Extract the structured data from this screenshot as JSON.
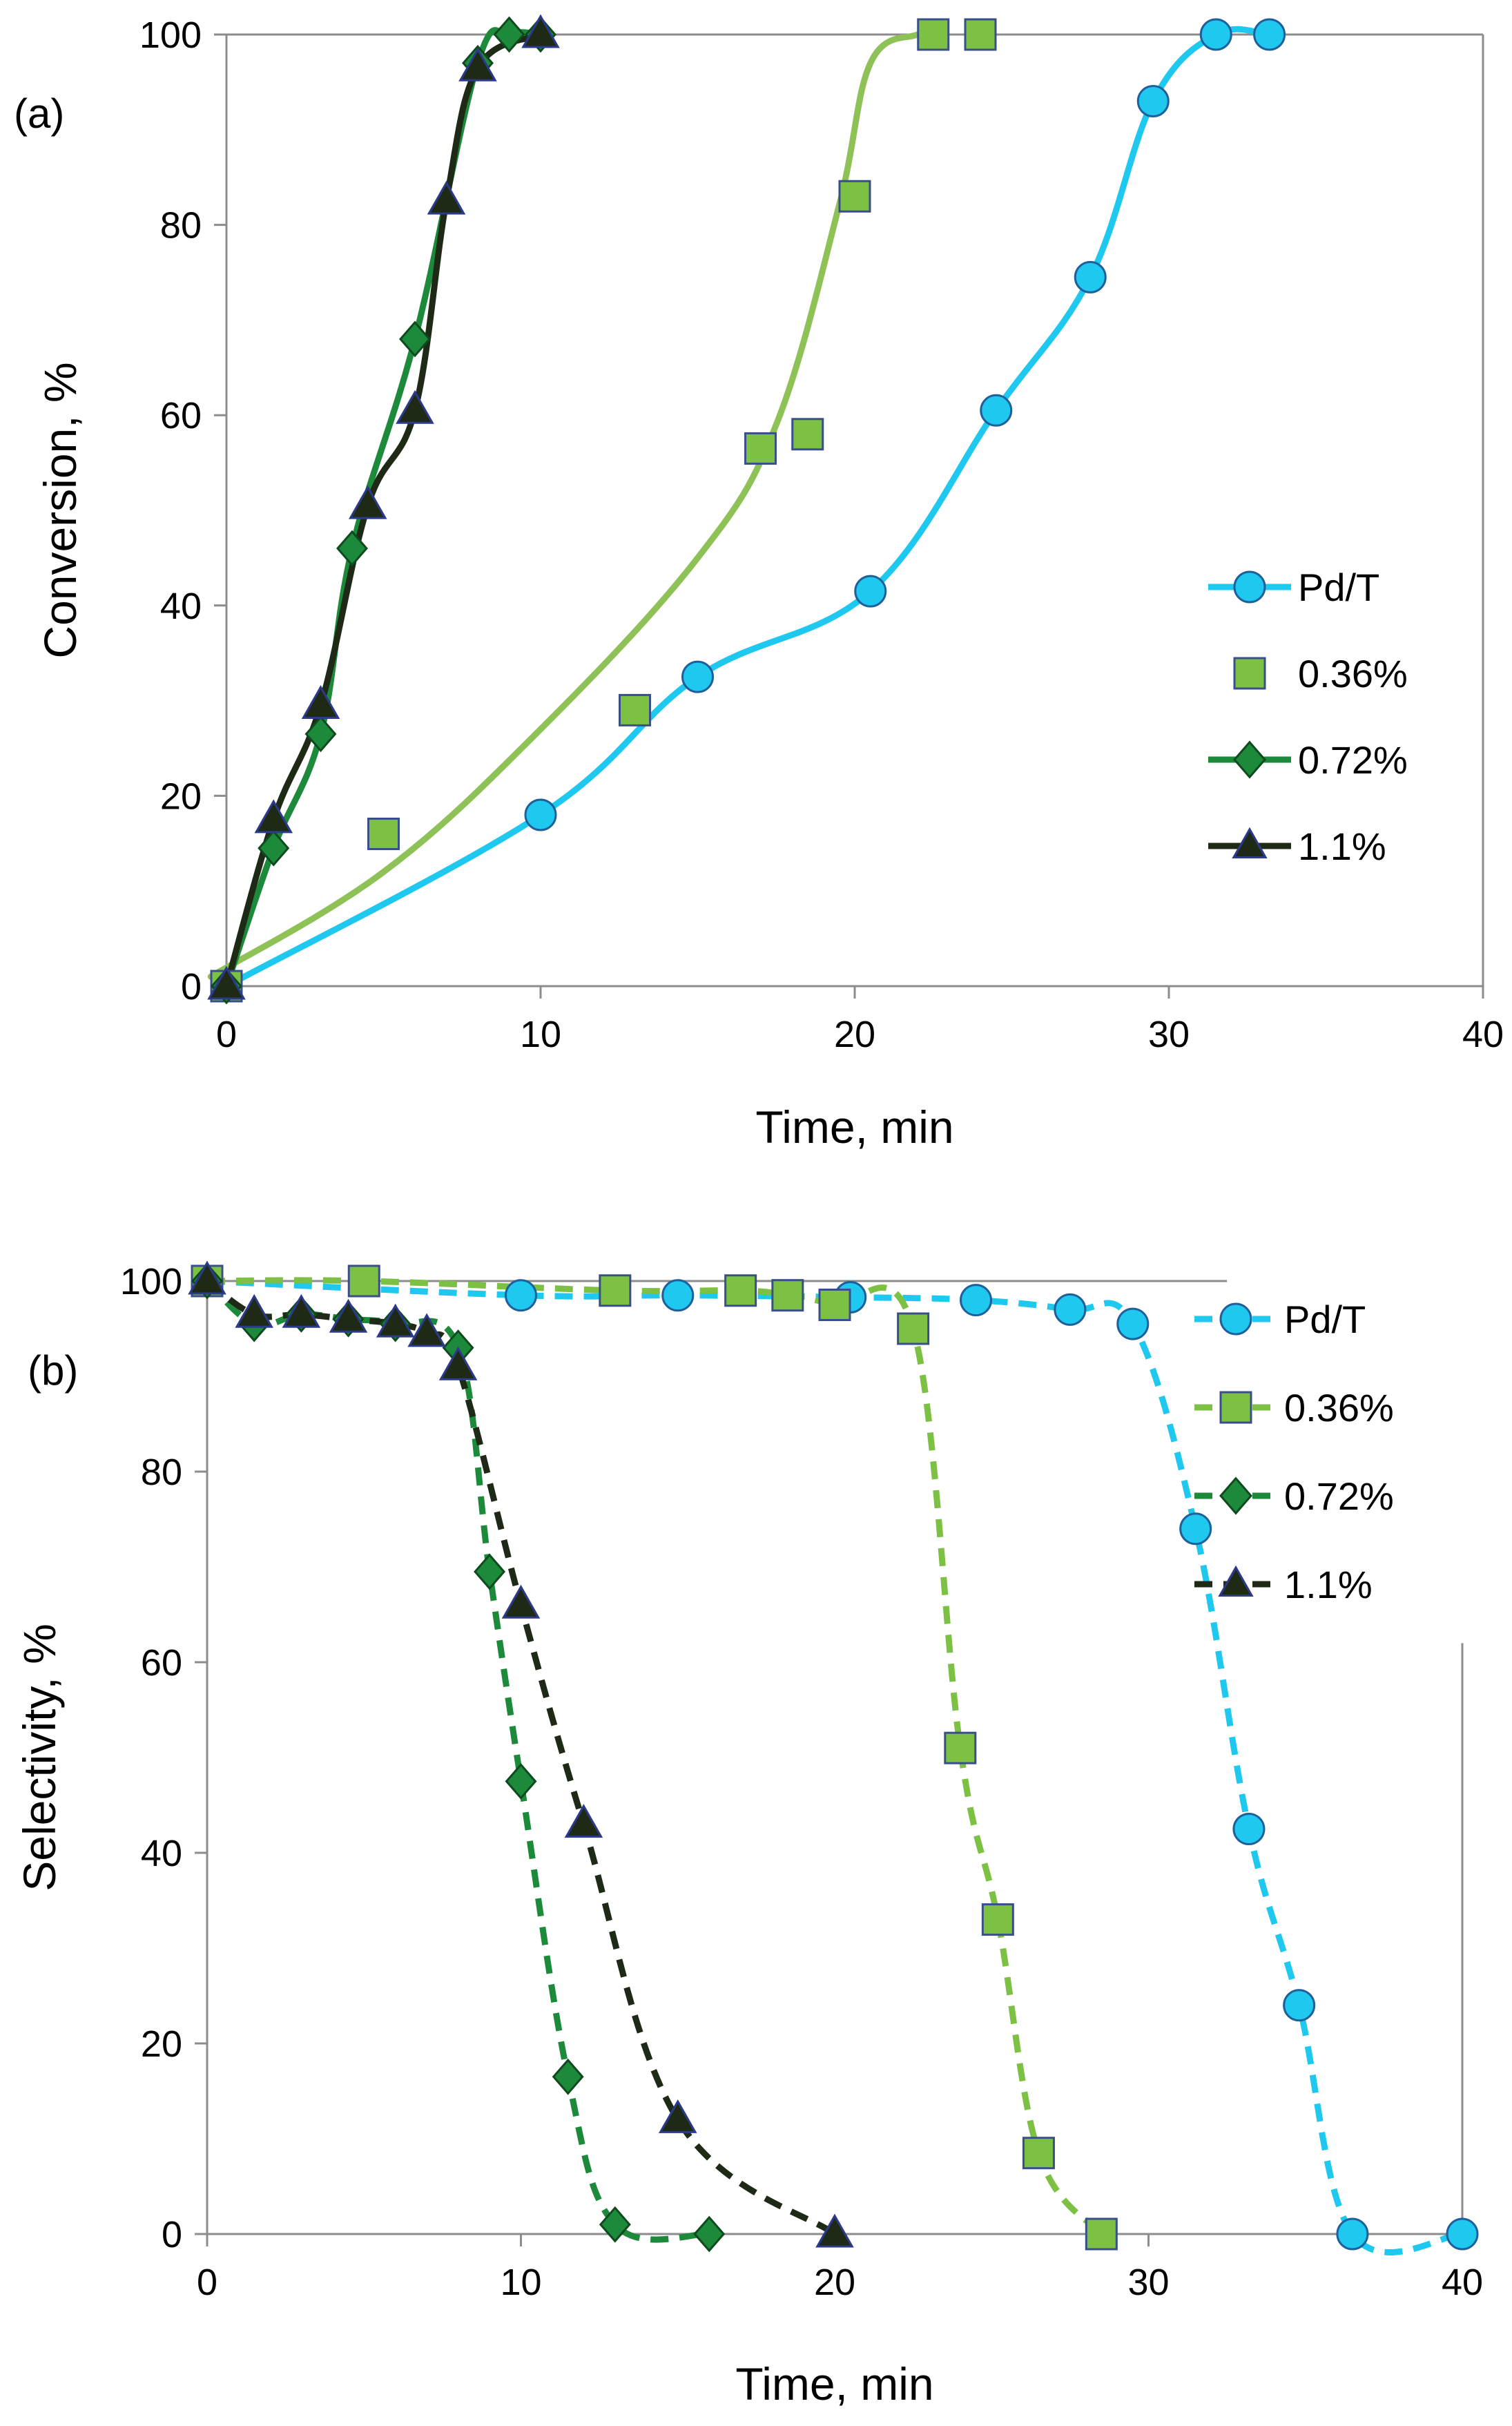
{
  "chart_data": [
    {
      "type": "line",
      "panel_label": "(a)",
      "xlabel": "Time, min",
      "ylabel": "Conversion, %",
      "xlim": [
        0,
        40
      ],
      "ylim": [
        0,
        100
      ],
      "xticks": [
        "0",
        "10",
        "20",
        "30",
        "40"
      ],
      "yticks": [
        "0",
        "20",
        "40",
        "60",
        "80",
        "100"
      ],
      "series": [
        {
          "name": "Pd/T",
          "marker": "circle",
          "color": "#1ec8ef",
          "dashed": false,
          "x": [
            0,
            10,
            15,
            20.5,
            24.5,
            27.5,
            29.5,
            31.5,
            33.2
          ],
          "y": [
            0,
            18,
            32.5,
            41.5,
            60.5,
            74.5,
            93,
            100,
            100
          ]
        },
        {
          "name": "0.36%",
          "marker": "square",
          "color": "#7cc143",
          "dashed": false,
          "x": [
            0,
            5,
            13,
            17,
            18.5,
            20,
            22.5,
            24
          ],
          "y": [
            0,
            16,
            29,
            56.5,
            58,
            83,
            100,
            100
          ],
          "trend_x": [
            -0.5,
            5,
            10,
            15,
            17.5,
            19.5,
            20.5,
            22,
            22.5
          ],
          "trend_y": [
            1,
            12,
            27,
            45,
            59,
            82,
            97,
            100,
            100
          ],
          "trend_color": "#8fc256"
        },
        {
          "name": "0.72%",
          "marker": "diamond",
          "color": "#1c8a3a",
          "dashed": false,
          "x": [
            0,
            1.5,
            3,
            4,
            6,
            8,
            9,
            10
          ],
          "y": [
            0,
            14.5,
            26.5,
            46,
            68,
            97,
            100,
            100
          ]
        },
        {
          "name": "1.1%",
          "marker": "triangle",
          "color": "#1e2a16",
          "dashed": false,
          "x": [
            0,
            1.5,
            3,
            4.5,
            6,
            7,
            8,
            10
          ],
          "y": [
            0,
            17.5,
            29.5,
            50.5,
            60.5,
            82.5,
            96.5,
            100
          ]
        }
      ]
    },
    {
      "type": "line",
      "panel_label": "(b)",
      "xlabel": "Time, min",
      "ylabel": "Selectivity, %",
      "xlim": [
        0,
        40
      ],
      "ylim": [
        0,
        100
      ],
      "xticks": [
        "0",
        "10",
        "20",
        "30",
        "40"
      ],
      "yticks": [
        "0",
        "20",
        "40",
        "60",
        "80",
        "100"
      ],
      "series": [
        {
          "name": "Pd/T",
          "marker": "circle",
          "color": "#1ec8ef",
          "dashed": true,
          "x": [
            0,
            10,
            15,
            20.5,
            24.5,
            27.5,
            29.5,
            31.5,
            33.2,
            34.8,
            36.5,
            40
          ],
          "y": [
            100,
            98.5,
            98.5,
            98.3,
            98,
            97,
            95.5,
            74,
            42.5,
            24,
            0,
            0
          ]
        },
        {
          "name": "0.36%",
          "marker": "square",
          "color": "#7cc143",
          "dashed": true,
          "x": [
            0,
            5,
            13,
            17,
            18.5,
            20,
            22.5,
            24,
            25.2,
            26.5,
            28.5
          ],
          "y": [
            100,
            100,
            99,
            99,
            98.5,
            97.5,
            95,
            51,
            33,
            8.5,
            0
          ]
        },
        {
          "name": "0.72%",
          "marker": "diamond",
          "color": "#1c8a3a",
          "dashed": true,
          "x": [
            0,
            1.5,
            3,
            4.5,
            6,
            8,
            9,
            10,
            11.5,
            13,
            16
          ],
          "y": [
            100,
            95.5,
            96.5,
            96,
            95.5,
            93,
            69.5,
            47.5,
            16.5,
            1,
            0
          ]
        },
        {
          "name": "1.1%",
          "marker": "triangle",
          "color": "#1e2a16",
          "dashed": true,
          "x": [
            0,
            1.5,
            3,
            4.5,
            6,
            7,
            8,
            10,
            12,
            15,
            20
          ],
          "y": [
            100,
            96.5,
            96.5,
            96,
            95.5,
            94.5,
            91,
            66,
            43,
            12,
            0
          ]
        }
      ]
    }
  ]
}
